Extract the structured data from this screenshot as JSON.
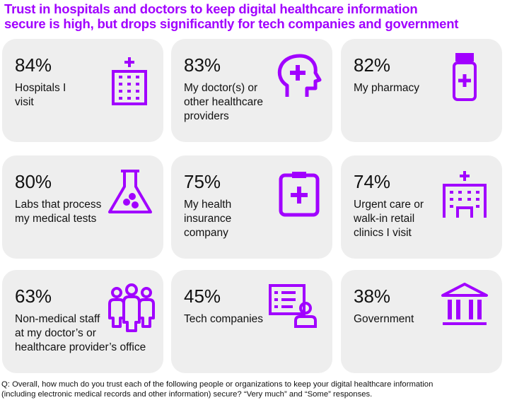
{
  "title_line1": "Trust in hospitals and doctors to keep digital healthcare information",
  "title_line2": "secure is high, but drops significantly for tech companies and government",
  "accent_color": "#a100ff",
  "chart_data": {
    "type": "table",
    "title": "Trust in hospitals and doctors to keep digital healthcare information secure is high, but drops significantly for tech companies and government",
    "unit": "%",
    "categories": [
      "Hospitals I visit",
      "My doctor(s) or other healthcare providers",
      "My pharmacy",
      "Labs that process my medical tests",
      "My health insurance company",
      "Urgent care or walk-in retail clinics I visit",
      "Non-medical staff at my doctor’s or healthcare provider’s office",
      "Tech companies",
      "Government"
    ],
    "values": [
      84,
      83,
      82,
      80,
      75,
      74,
      63,
      45,
      38
    ]
  },
  "cards": [
    {
      "percent": "84%",
      "label": "Hospitals I\nvisit",
      "icon": "hospital-building-icon"
    },
    {
      "percent": "83%",
      "label": "My doctor(s) or\nother healthcare\nproviders",
      "icon": "head-medical-cross-icon"
    },
    {
      "percent": "82%",
      "label": "My pharmacy",
      "icon": "medicine-bottle-icon"
    },
    {
      "percent": "80%",
      "label": "Labs that process\nmy medical tests",
      "icon": "lab-flask-icon"
    },
    {
      "percent": "75%",
      "label": "My health\ninsurance\ncompany",
      "icon": "medical-clipboard-icon"
    },
    {
      "percent": "74%",
      "label": "Urgent care or\nwalk-in retail\nclinics I visit",
      "icon": "clinic-building-icon"
    },
    {
      "percent": "63%",
      "label": "Non-medical staff\nat my doctor’s or\nhealthcare provider’s office",
      "icon": "staff-group-icon"
    },
    {
      "percent": "45%",
      "label": "Tech companies",
      "icon": "user-profile-list-icon"
    },
    {
      "percent": "38%",
      "label": "Government",
      "icon": "government-building-icon"
    }
  ],
  "footnote_line1": "Q: Overall, how much do you trust each of the following people or organizations to keep your digital healthcare information",
  "footnote_line2": "(including electronic medical records and other information) secure? “Very much” and “Some” responses."
}
